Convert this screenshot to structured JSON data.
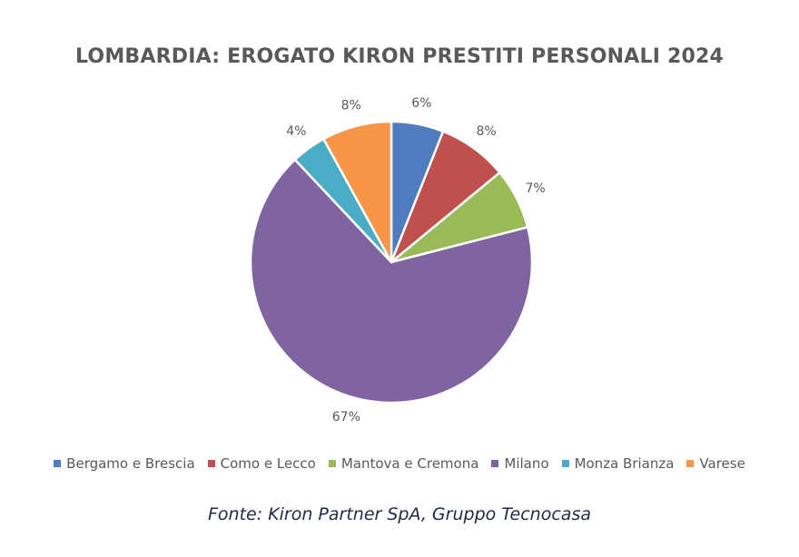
{
  "chart_data": {
    "type": "pie",
    "title": "LOMBARDIA: EROGATO KIRON PRESTITI PERSONALI 2024",
    "categories": [
      "Bergamo e Brescia",
      "Como e Lecco",
      "Mantova e Cremona",
      "Milano",
      "Monza Brianza",
      "Varese"
    ],
    "values": [
      6,
      8,
      7,
      67,
      4,
      8
    ],
    "value_labels": [
      "6%",
      "8%",
      "7%",
      "67%",
      "4%",
      "8%"
    ],
    "colors": [
      "#4f7cbf",
      "#c0504d",
      "#9bbb59",
      "#8064a2",
      "#4bacc6",
      "#f79646"
    ],
    "legend_position": "bottom",
    "start_angle": "12 o'clock",
    "direction": "clockwise"
  },
  "source": "Fonte: Kiron Partner SpA, Gruppo Tecnocasa"
}
